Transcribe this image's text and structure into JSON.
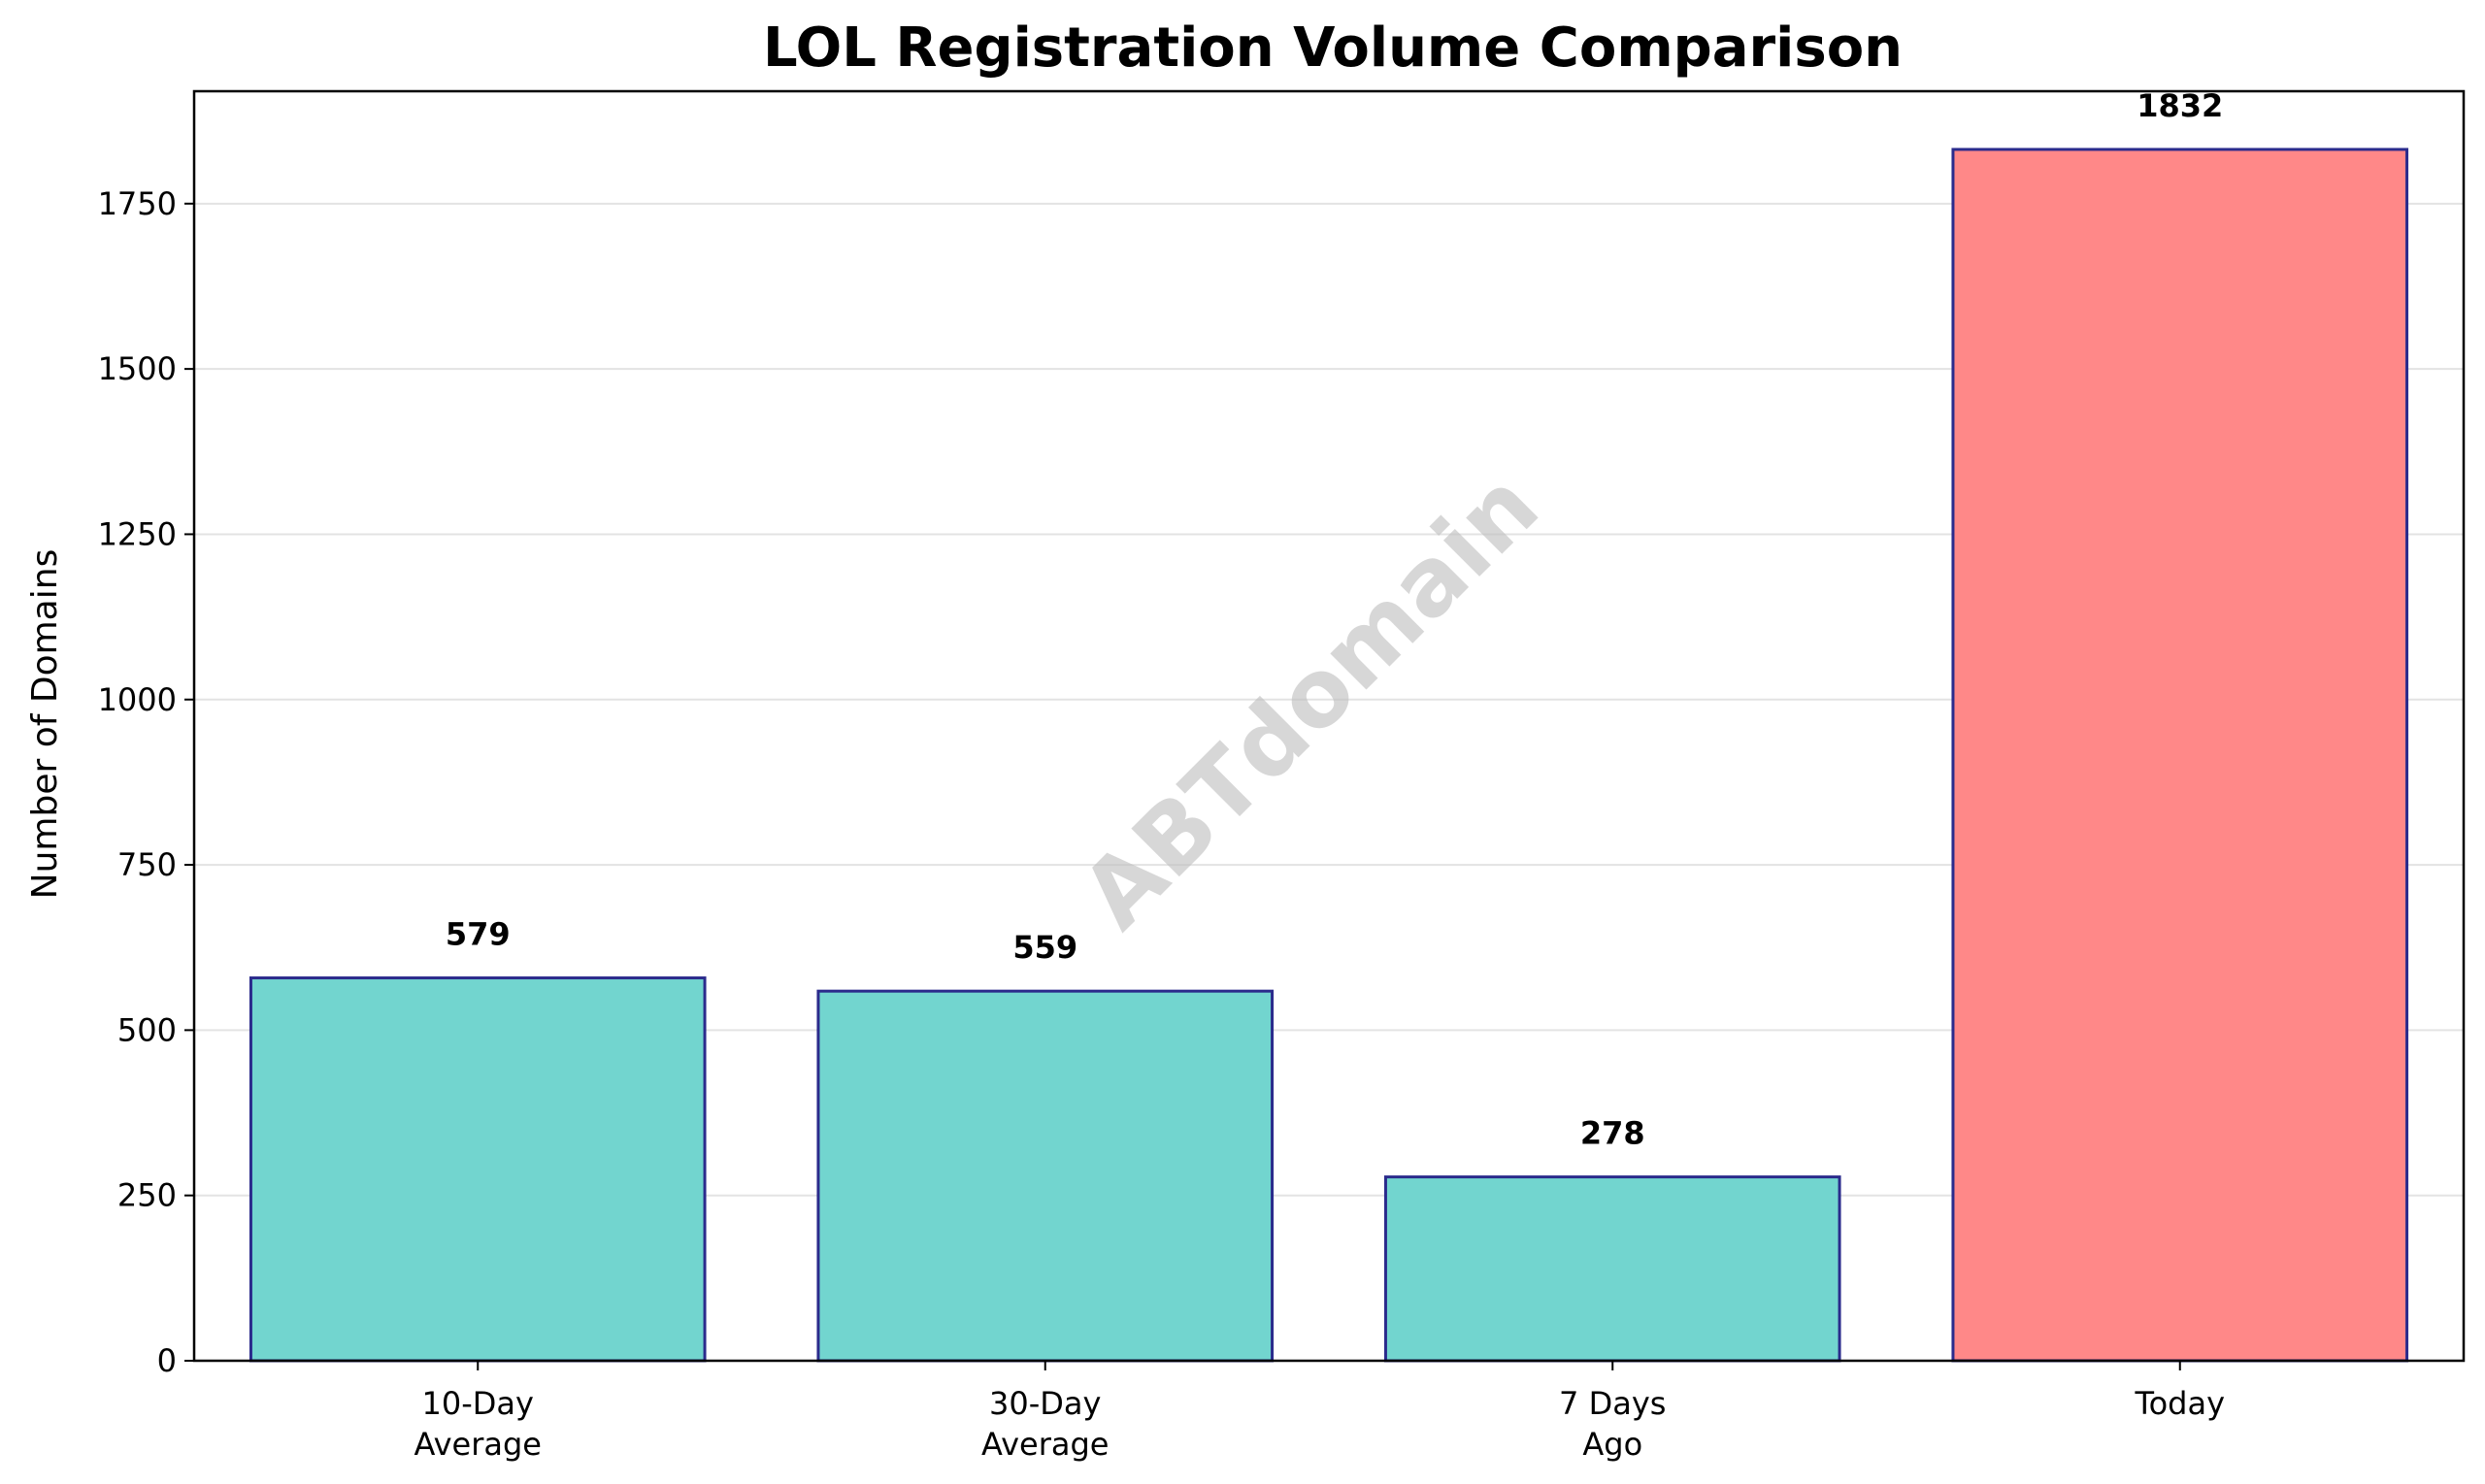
{
  "chart_data": {
    "type": "bar",
    "title": "LOL Registration Volume Comparison",
    "xlabel": "",
    "ylabel": "Number of Domains",
    "categories": [
      [
        "10-Day",
        "Average"
      ],
      [
        "30-Day",
        "Average"
      ],
      [
        "7 Days",
        "Ago"
      ],
      [
        "Today"
      ]
    ],
    "values": [
      579,
      559,
      278,
      1832
    ],
    "value_labels": [
      "579",
      "559",
      "278",
      "1832"
    ],
    "colors": [
      "#72d5cf",
      "#72d5cf",
      "#72d5cf",
      "#ff8888"
    ],
    "edge_color": "#2b2b8c",
    "ylim": [
      0,
      1920
    ],
    "yticks": [
      0,
      250,
      500,
      750,
      1000,
      1250,
      1500,
      1750
    ],
    "grid": "y",
    "watermark": "ABTdomain"
  }
}
